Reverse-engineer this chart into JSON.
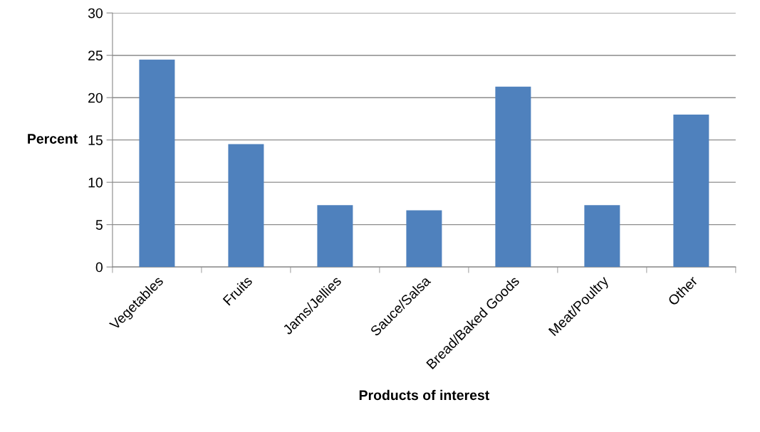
{
  "chart_data": {
    "type": "bar",
    "xlabel": "Products of interest",
    "ylabel": "Percent",
    "categories": [
      "Vegetables",
      "Fruits",
      "Jams/Jellies",
      "Sauce/Salsa",
      "Bread/Baked Goods",
      "Meat/Poultry",
      "Other"
    ],
    "values": [
      24.5,
      14.5,
      7.3,
      6.7,
      21.3,
      7.3,
      18.0
    ],
    "color": "#4f81bd",
    "ylim": [
      0,
      30
    ],
    "yticks": [
      0,
      5,
      10,
      15,
      20,
      25,
      30
    ],
    "grid": "y"
  }
}
